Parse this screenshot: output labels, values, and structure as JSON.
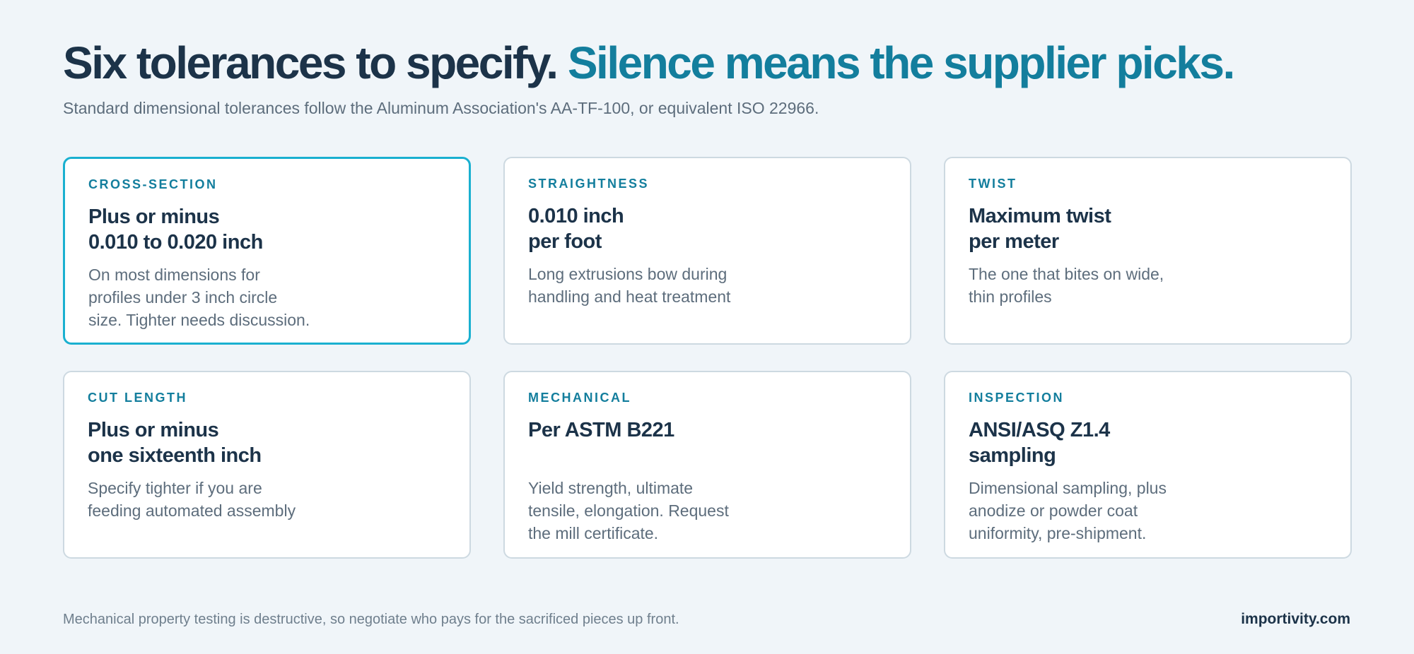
{
  "header": {
    "title_main": "Six tolerances to specify.",
    "title_accent": "Silence means the supplier picks.",
    "subtitle": "Standard dimensional tolerances follow the Aluminum Association's AA-TF-100, or equivalent ISO 22966."
  },
  "cards": [
    {
      "label": "CROSS-SECTION",
      "heading": [
        "Plus or minus",
        "0.010 to 0.020 inch"
      ],
      "body": [
        "On most dimensions for",
        "profiles under 3 inch circle",
        "size. Tighter needs discussion."
      ],
      "highlighted": true
    },
    {
      "label": "STRAIGHTNESS",
      "heading": [
        "0.010 inch",
        "per foot"
      ],
      "body": [
        "Long extrusions bow during",
        "handling and heat treatment"
      ]
    },
    {
      "label": "TWIST",
      "heading": [
        "Maximum twist",
        "per meter"
      ],
      "body": [
        "The one that bites on wide,",
        "thin profiles"
      ]
    },
    {
      "label": "CUT LENGTH",
      "heading": [
        "Plus or minus",
        "one sixteenth inch"
      ],
      "body": [
        "Specify tighter if you are",
        "feeding automated assembly"
      ]
    },
    {
      "label": "MECHANICAL",
      "heading": [
        "Per ASTM B221"
      ],
      "body": [
        "Yield strength, ultimate",
        "tensile, elongation. Request",
        "the mill certificate."
      ]
    },
    {
      "label": "INSPECTION",
      "heading": [
        "ANSI/ASQ Z1.4",
        "sampling"
      ],
      "body": [
        "Dimensional sampling, plus",
        "anodize or powder coat",
        "uniformity, pre-shipment."
      ]
    }
  ],
  "footer": {
    "note": "Mechanical property testing is destructive, so negotiate who pays for the sacrificed pieces up front.",
    "brand": "importivity.com"
  }
}
